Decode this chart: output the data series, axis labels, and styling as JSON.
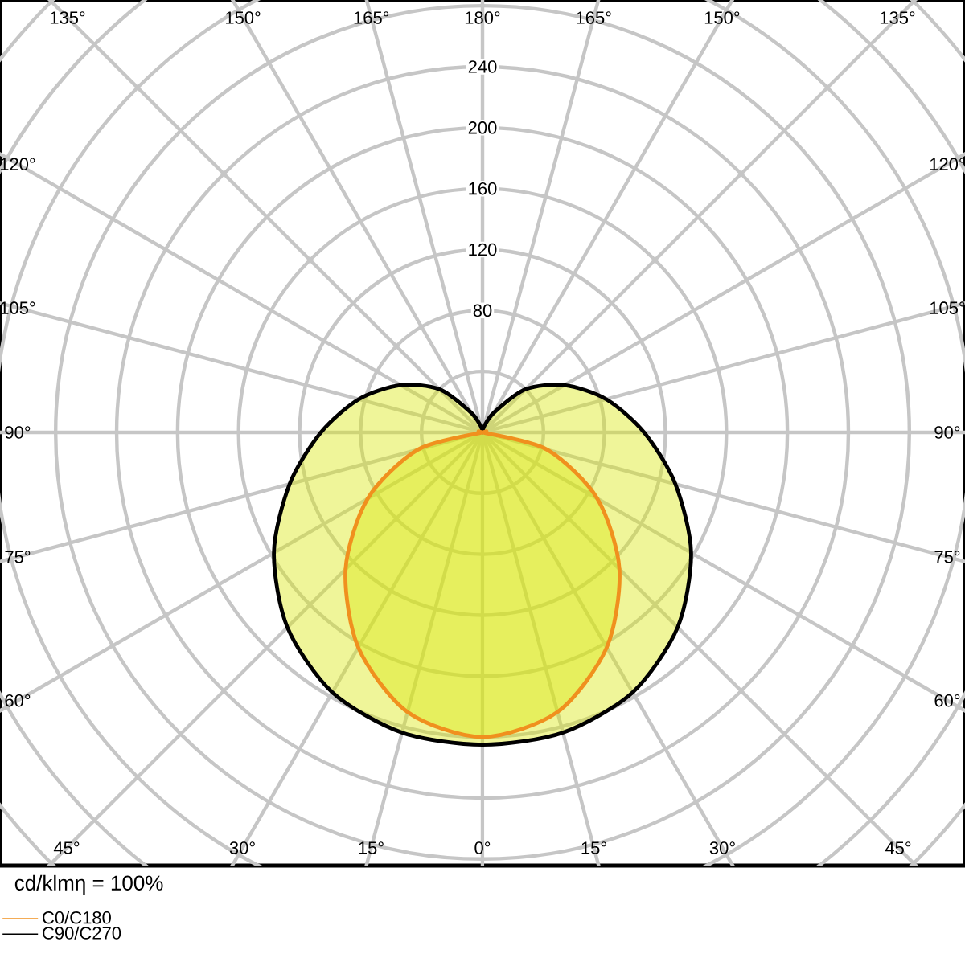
{
  "chart_data": {
    "type": "radar",
    "categories": [
      "180°",
      "165°",
      "150°",
      "135°",
      "120°",
      "105°",
      "90°",
      "75°",
      "60°",
      "45°",
      "30°",
      "15°",
      "0°",
      "15°",
      "30°",
      "45°",
      "60°",
      "75°",
      "90°",
      "105°",
      "120°",
      "135°",
      "150°",
      "165°"
    ],
    "series": [
      {
        "name": "C0/C180",
        "color": "#f0901e",
        "values": [
          0,
          0,
          0,
          0,
          0,
          0,
          0,
          44,
          87,
          127,
          163,
          190,
          200,
          190,
          163,
          127,
          87,
          44,
          0,
          0,
          0,
          0,
          0,
          0
        ]
      },
      {
        "name": "C90/C270",
        "color": "#000000",
        "values": [
          0,
          4,
          15,
          40,
          62,
          84,
          106,
          131,
          158,
          181,
          197,
          204,
          205,
          204,
          197,
          181,
          158,
          131,
          106,
          84,
          62,
          40,
          15,
          4
        ]
      }
    ],
    "ylim": [
      0,
      400
    ],
    "yticks": [
      80,
      120,
      160,
      200,
      240
    ],
    "grid": true,
    "legend": "bottom left",
    "annotations": [
      "cd/klmη = 100%"
    ]
  }
}
